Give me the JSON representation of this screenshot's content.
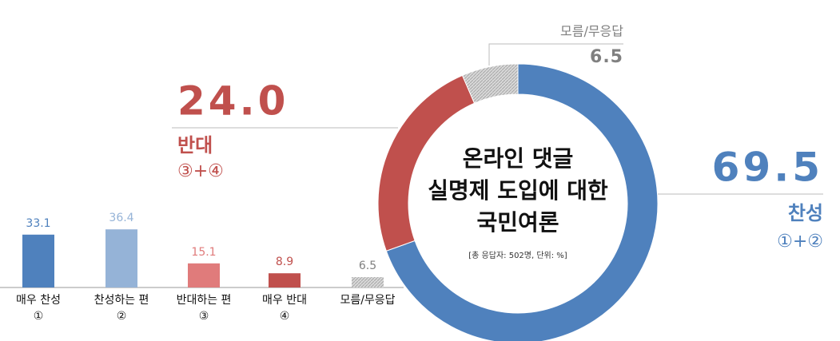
{
  "chart_data": [
    {
      "type": "donut",
      "title": [
        "온라인 댓글",
        "실명제 도입에 대한",
        "국민여론"
      ],
      "note": "[총 응답자: 502명, 단위: %]",
      "categories": [
        "찬성",
        "반대",
        "모름/무응답"
      ],
      "category_notes": [
        "①+②",
        "③+④",
        null
      ],
      "values": [
        69.5,
        24.0,
        6.5
      ],
      "value_labels": [
        "69.5",
        "24.0",
        "6.5"
      ],
      "colors": [
        "#4f81bd",
        "#c0504d",
        "#c8c8c8"
      ]
    },
    {
      "type": "bar",
      "categories": [
        "매우 찬성",
        "찬성하는 편",
        "반대하는 편",
        "매우 반대",
        "모름/무응답"
      ],
      "category_notes": [
        "①",
        "②",
        "③",
        "④",
        null
      ],
      "values": [
        33.1,
        36.4,
        15.1,
        8.9,
        6.5
      ],
      "colors": [
        "#4f81bd",
        "#95b3d7",
        "#e07b7b",
        "#c0504d",
        "#bfbfbf"
      ]
    }
  ]
}
